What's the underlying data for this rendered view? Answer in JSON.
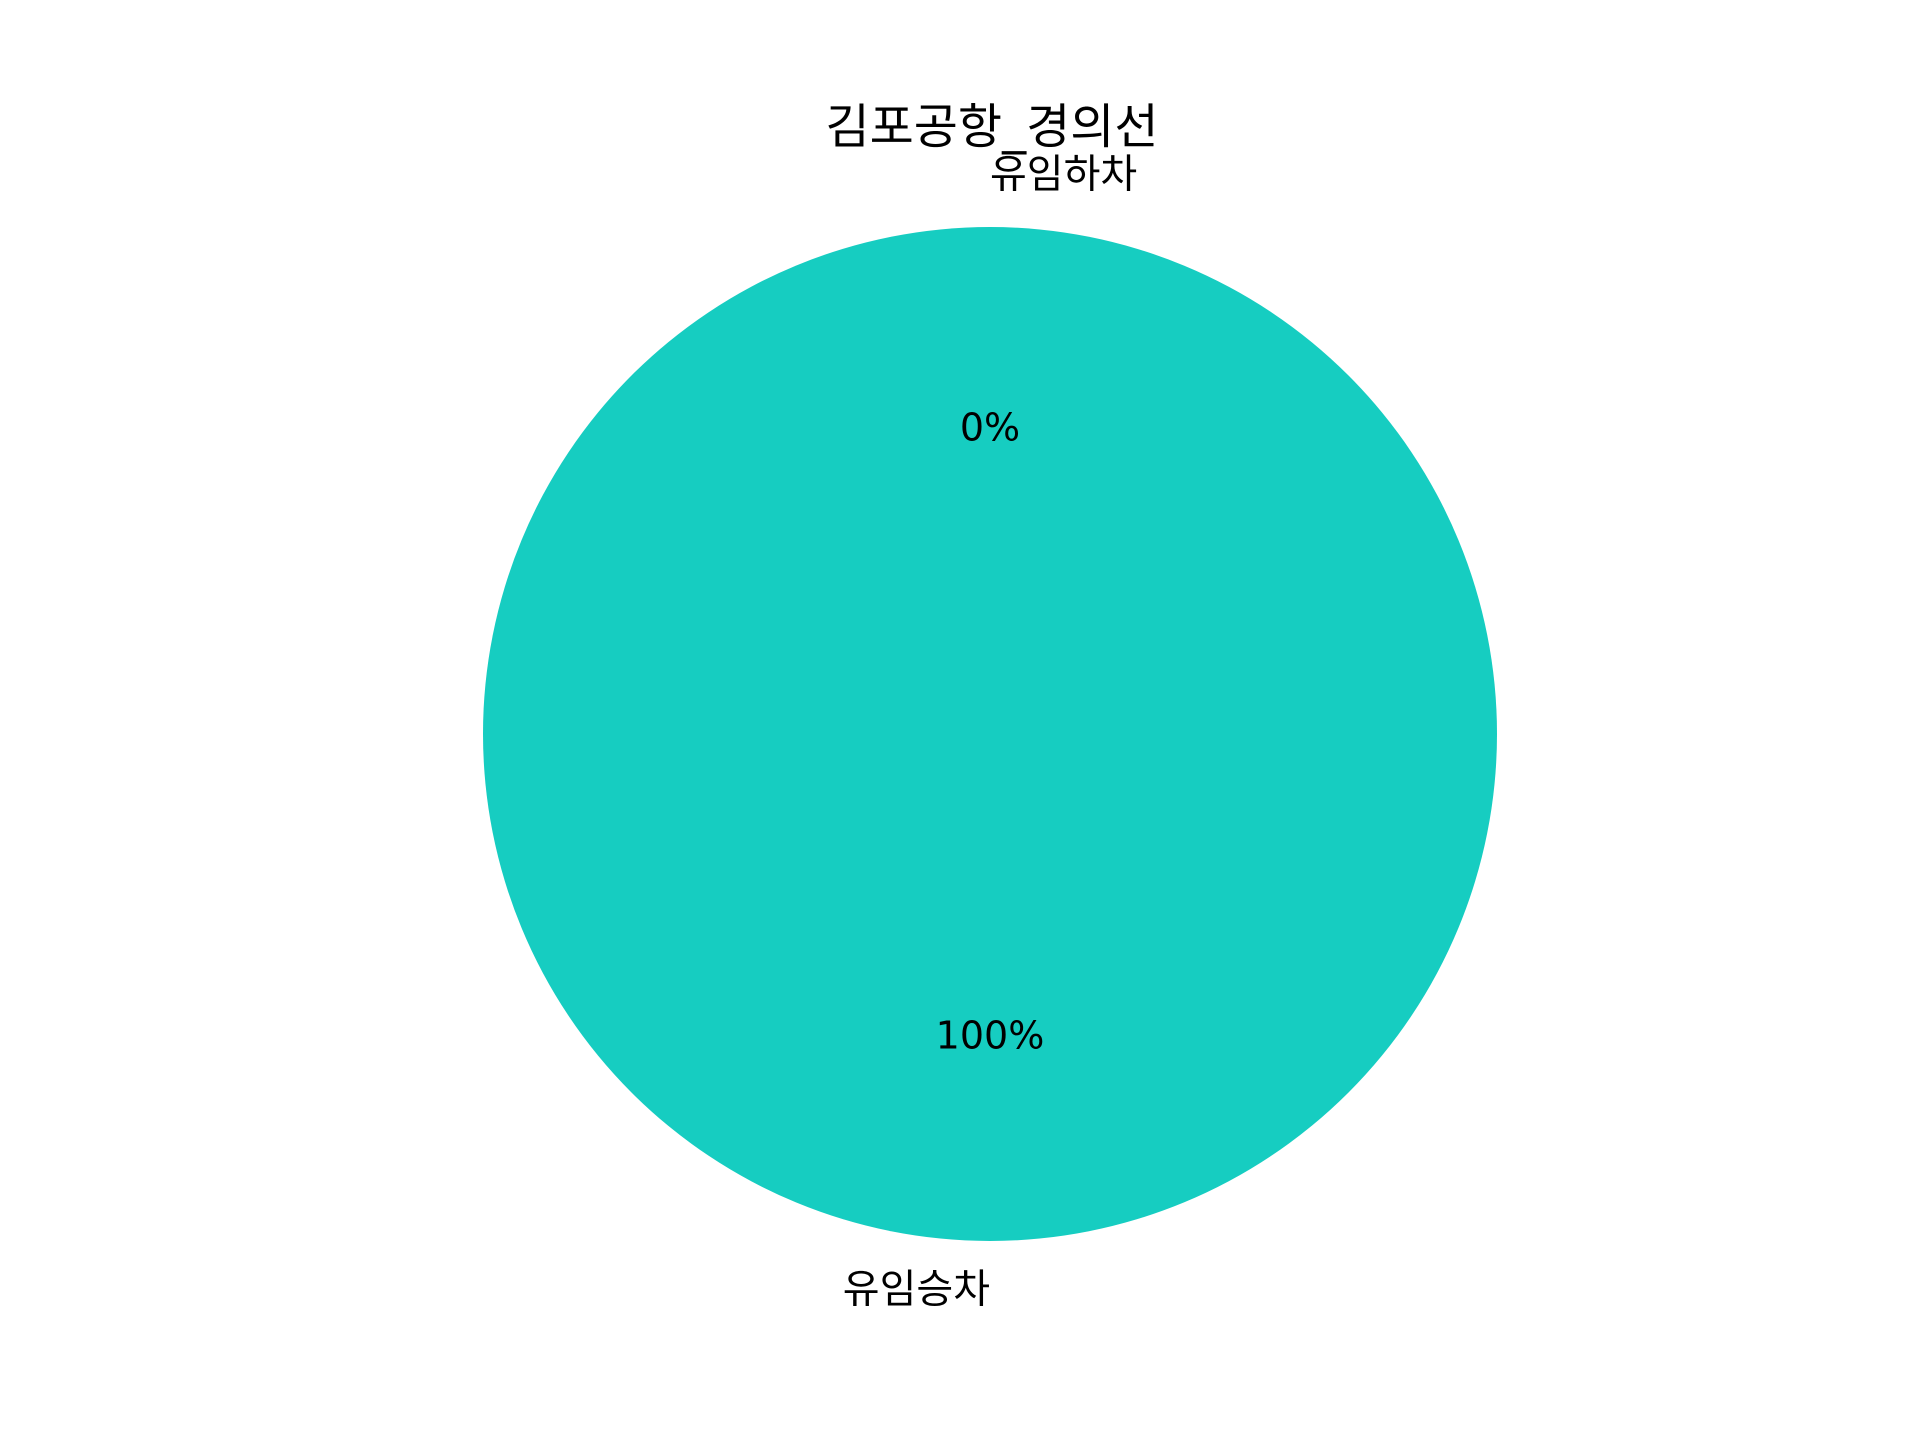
{
  "chart_data": {
    "type": "pie",
    "title": "김포공항_경의선",
    "categories": [
      "유임하차",
      "유임승차"
    ],
    "values": [
      0,
      100
    ],
    "percent_labels": [
      "0%",
      "100%"
    ],
    "colors": [
      "#6a5acd",
      "#16cdc1"
    ],
    "legend": "none",
    "start_angle_deg": 90,
    "direction": "counterclockwise"
  }
}
